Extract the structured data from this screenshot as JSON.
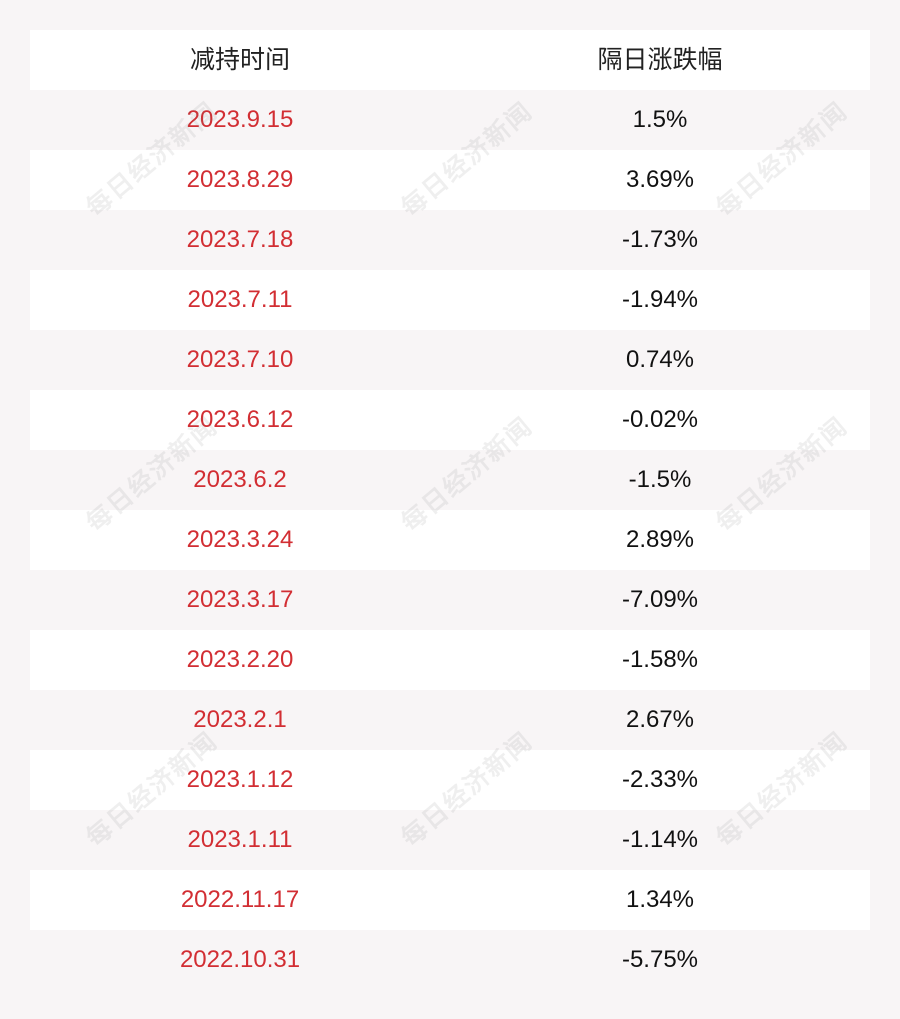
{
  "table": {
    "headers": [
      "减持时间",
      "隔日涨跌幅"
    ],
    "rows": [
      {
        "date": "2023.9.15",
        "change": "1.5%"
      },
      {
        "date": "2023.8.29",
        "change": "3.69%"
      },
      {
        "date": "2023.7.18",
        "change": "-1.73%"
      },
      {
        "date": "2023.7.11",
        "change": "-1.94%"
      },
      {
        "date": "2023.7.10",
        "change": "0.74%"
      },
      {
        "date": "2023.6.12",
        "change": "-0.02%"
      },
      {
        "date": "2023.6.2",
        "change": "-1.5%"
      },
      {
        "date": "2023.3.24",
        "change": "2.89%"
      },
      {
        "date": "2023.3.17",
        "change": "-7.09%"
      },
      {
        "date": "2023.2.20",
        "change": "-1.58%"
      },
      {
        "date": "2023.2.1",
        "change": "2.67%"
      },
      {
        "date": "2023.1.12",
        "change": "-2.33%"
      },
      {
        "date": "2023.1.11",
        "change": "-1.14%"
      },
      {
        "date": "2022.11.17",
        "change": "1.34%"
      },
      {
        "date": "2022.10.31",
        "change": "-5.75%"
      }
    ]
  },
  "watermark": {
    "text": "每日经济新闻"
  },
  "colors": {
    "background": "#f8f5f6",
    "row_white": "#ffffff",
    "date_text": "#d22e33",
    "change_text": "#111111"
  }
}
